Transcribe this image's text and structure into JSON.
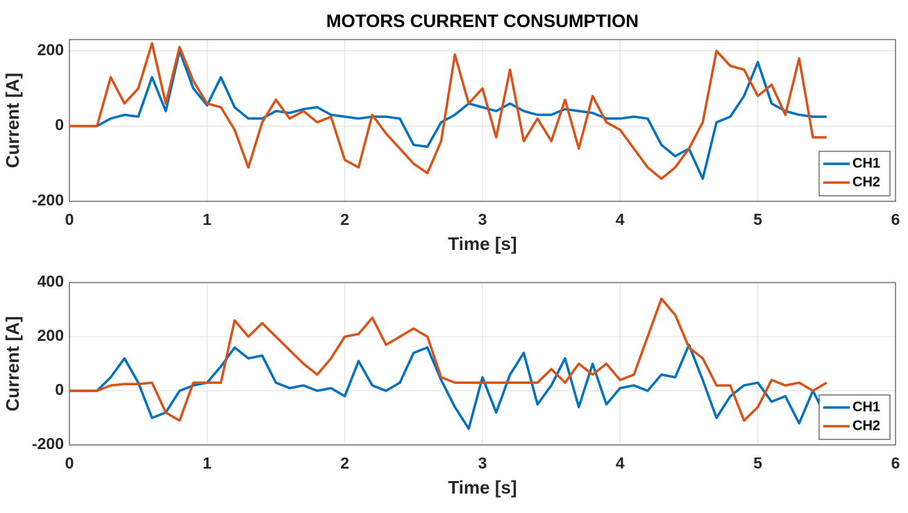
{
  "chart_data": [
    {
      "type": "line",
      "title": "MOTORS CURRENT CONSUMPTION",
      "x_label": "Time [s]",
      "y_label": "Current [A]",
      "x": [
        0,
        0.1,
        0.2,
        0.3,
        0.4,
        0.5,
        0.6,
        0.7,
        0.8,
        0.9,
        1.0,
        1.1,
        1.2,
        1.3,
        1.4,
        1.5,
        1.6,
        1.7,
        1.8,
        1.9,
        2.0,
        2.1,
        2.2,
        2.3,
        2.4,
        2.5,
        2.6,
        2.7,
        2.8,
        2.9,
        3.0,
        3.1,
        3.2,
        3.3,
        3.4,
        3.5,
        3.6,
        3.7,
        3.8,
        3.9,
        4.0,
        4.1,
        4.2,
        4.3,
        4.4,
        4.5,
        4.6,
        4.7,
        4.8,
        4.9,
        5.0,
        5.1,
        5.2,
        5.3,
        5.4,
        5.5
      ],
      "series": [
        {
          "name": "CH1",
          "color": "#0072BD",
          "values": [
            0,
            0,
            0,
            20,
            30,
            25,
            130,
            40,
            200,
            100,
            55,
            130,
            50,
            20,
            20,
            40,
            35,
            45,
            50,
            30,
            25,
            20,
            25,
            25,
            20,
            -50,
            -55,
            10,
            30,
            60,
            50,
            40,
            60,
            40,
            30,
            30,
            45,
            40,
            35,
            20,
            20,
            25,
            20,
            -50,
            -80,
            -60,
            -140,
            10,
            25,
            80,
            170,
            60,
            40,
            30,
            25,
            25
          ]
        },
        {
          "name": "CH2",
          "color": "#D95319",
          "values": [
            0,
            0,
            0,
            130,
            60,
            100,
            220,
            60,
            210,
            120,
            60,
            50,
            -10,
            -110,
            10,
            70,
            20,
            40,
            10,
            25,
            -90,
            -110,
            30,
            -20,
            -60,
            -100,
            -125,
            -40,
            190,
            60,
            100,
            -30,
            150,
            -40,
            20,
            -40,
            70,
            -60,
            80,
            10,
            -10,
            -60,
            -110,
            -140,
            -110,
            -60,
            10,
            200,
            160,
            150,
            80,
            110,
            30,
            180,
            -30,
            -30
          ]
        }
      ],
      "xlim": [
        0,
        6
      ],
      "xticks": [
        0,
        1,
        2,
        3,
        4,
        5,
        6
      ],
      "ylim": [
        -200,
        230
      ],
      "yticks": [
        -200,
        0,
        200
      ],
      "grid": true,
      "legend": "southeast"
    },
    {
      "type": "line",
      "x_label": "Time [s]",
      "y_label": "Current [A]",
      "x": [
        0,
        0.1,
        0.2,
        0.3,
        0.4,
        0.5,
        0.6,
        0.7,
        0.8,
        0.9,
        1.0,
        1.1,
        1.2,
        1.3,
        1.4,
        1.5,
        1.6,
        1.7,
        1.8,
        1.9,
        2.0,
        2.1,
        2.2,
        2.3,
        2.4,
        2.5,
        2.6,
        2.7,
        2.8,
        2.9,
        3.0,
        3.1,
        3.2,
        3.3,
        3.4,
        3.5,
        3.6,
        3.7,
        3.8,
        3.9,
        4.0,
        4.1,
        4.2,
        4.3,
        4.4,
        4.5,
        4.6,
        4.7,
        4.8,
        4.9,
        5.0,
        5.1,
        5.2,
        5.3,
        5.4,
        5.5
      ],
      "series": [
        {
          "name": "CH1",
          "color": "#0072BD",
          "values": [
            0,
            0,
            0,
            50,
            120,
            30,
            -100,
            -80,
            0,
            20,
            30,
            90,
            160,
            120,
            130,
            30,
            10,
            20,
            0,
            10,
            -20,
            110,
            20,
            0,
            30,
            140,
            160,
            40,
            -60,
            -140,
            50,
            -80,
            60,
            140,
            -50,
            20,
            120,
            -60,
            100,
            -50,
            10,
            20,
            0,
            60,
            50,
            170,
            40,
            -100,
            -20,
            20,
            30,
            -40,
            -20,
            -120,
            0,
            -100
          ]
        },
        {
          "name": "CH2",
          "color": "#D95319",
          "values": [
            0,
            0,
            0,
            20,
            25,
            25,
            30,
            -80,
            -110,
            30,
            30,
            30,
            260,
            200,
            250,
            200,
            150,
            100,
            60,
            120,
            200,
            210,
            270,
            170,
            200,
            230,
            200,
            50,
            30,
            30,
            30,
            30,
            30,
            30,
            30,
            80,
            30,
            100,
            60,
            100,
            40,
            60,
            200,
            340,
            280,
            160,
            120,
            20,
            20,
            -110,
            -60,
            40,
            20,
            30,
            0,
            30
          ]
        }
      ],
      "xlim": [
        0,
        6
      ],
      "xticks": [
        0,
        1,
        2,
        3,
        4,
        5,
        6
      ],
      "ylim": [
        -200,
        400
      ],
      "yticks": [
        -200,
        0,
        200,
        400
      ],
      "grid": true,
      "legend": "southeast"
    }
  ]
}
